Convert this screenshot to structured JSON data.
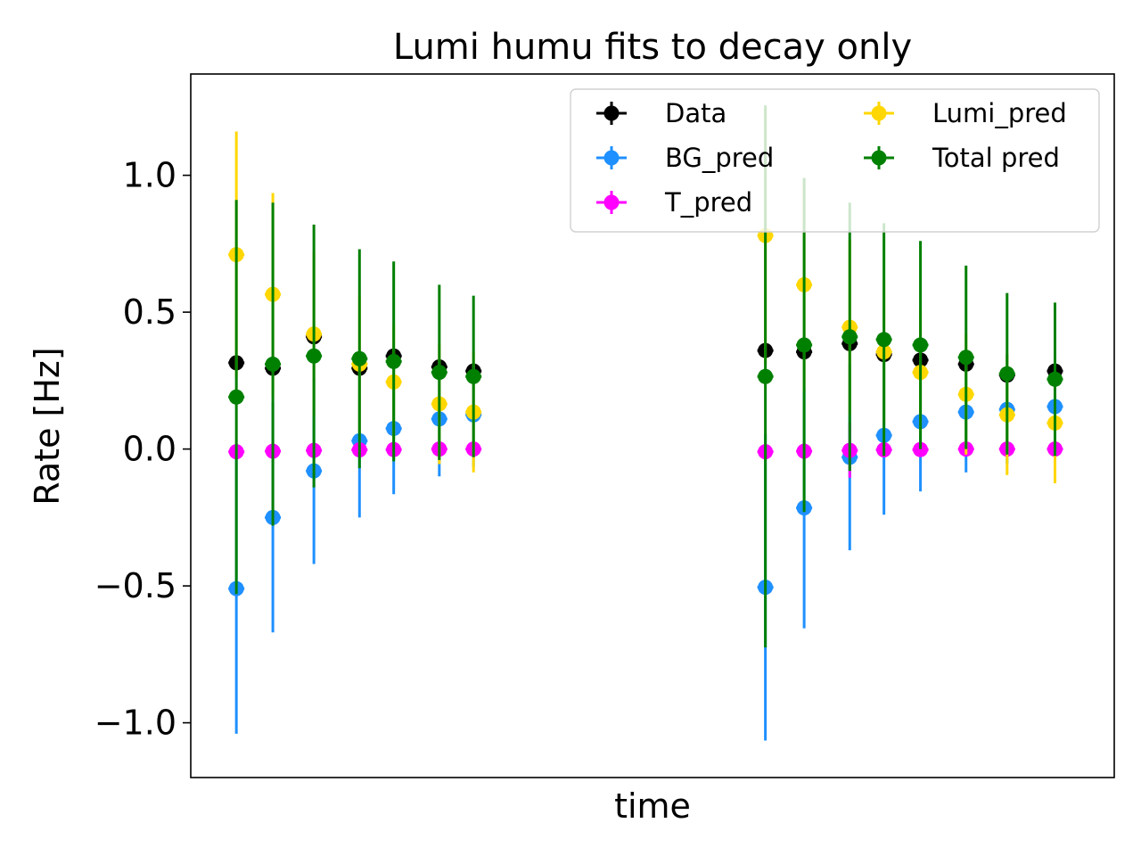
{
  "chart_data": {
    "type": "scatter",
    "title": "Lumi humu fits to decay only",
    "xlabel": "time",
    "ylabel": "Rate [Hz]",
    "x_ticks_shown": false,
    "ylim": [
      -1.2,
      1.37
    ],
    "yticks": [
      -1.0,
      -0.5,
      0.0,
      0.5,
      1.0
    ],
    "ytick_labels": [
      "−1.0",
      "−0.5",
      "0.0",
      "0.5",
      "1.0"
    ],
    "grid": false,
    "legend": {
      "position": "top-right",
      "columns": 2
    },
    "x_positions": [
      1.0,
      1.8,
      2.7,
      3.7,
      4.45,
      5.45,
      6.2,
      12.6,
      13.45,
      14.45,
      15.2,
      16.0,
      17.0,
      17.9,
      18.95
    ],
    "series": [
      {
        "name": "Data",
        "color": "#000000",
        "values": [
          0.315,
          0.295,
          0.41,
          0.295,
          0.34,
          0.3,
          0.285,
          0.36,
          0.355,
          0.385,
          0.345,
          0.325,
          0.31,
          0.27,
          0.285
        ],
        "yerr": [
          0.0,
          0.0,
          0.0,
          0.0,
          0.0,
          0.0,
          0.0,
          0.0,
          0.0,
          0.0,
          0.0,
          0.0,
          0.0,
          0.0,
          0.0
        ]
      },
      {
        "name": "BG_pred",
        "color": "#1E90FF",
        "values": [
          -0.51,
          -0.25,
          -0.08,
          0.03,
          0.075,
          0.11,
          0.125,
          -0.505,
          -0.215,
          -0.03,
          0.05,
          0.1,
          0.135,
          0.145,
          0.155
        ],
        "yerr": [
          0.53,
          0.42,
          0.34,
          0.28,
          0.24,
          0.21,
          0.19,
          0.56,
          0.44,
          0.34,
          0.29,
          0.255,
          0.22,
          0.2,
          0.19
        ]
      },
      {
        "name": "T_pred",
        "color": "#FF00FF",
        "values": [
          -0.01,
          -0.008,
          -0.005,
          -0.003,
          -0.002,
          0.0,
          0.0,
          -0.01,
          -0.008,
          -0.005,
          -0.003,
          -0.002,
          0.0,
          0.0,
          0.0
        ],
        "yerr": [
          0.01,
          0.01,
          0.01,
          0.01,
          0.01,
          0.01,
          0.01,
          0.01,
          0.01,
          0.1,
          0.01,
          0.01,
          0.01,
          0.01,
          0.01
        ]
      },
      {
        "name": "Lumi_pred",
        "color": "#FFD700",
        "values": [
          0.71,
          0.565,
          0.42,
          0.31,
          0.245,
          0.165,
          0.135,
          0.78,
          0.6,
          0.445,
          0.355,
          0.28,
          0.2,
          0.125,
          0.095
        ],
        "yerr": [
          0.45,
          0.37,
          0.3,
          0.25,
          0.21,
          0.22,
          0.22,
          0.47,
          0.39,
          0.32,
          0.26,
          0.23,
          0.22,
          0.22,
          0.22
        ]
      },
      {
        "name": "Total pred",
        "color": "#008000",
        "values": [
          0.19,
          0.31,
          0.34,
          0.33,
          0.32,
          0.28,
          0.265,
          0.265,
          0.38,
          0.41,
          0.4,
          0.38,
          0.335,
          0.275,
          0.255
        ],
        "yerr": [
          0.72,
          0.59,
          0.48,
          0.4,
          0.365,
          0.32,
          0.295,
          0.99,
          0.61,
          0.49,
          0.425,
          0.38,
          0.335,
          0.295,
          0.28
        ]
      }
    ]
  }
}
